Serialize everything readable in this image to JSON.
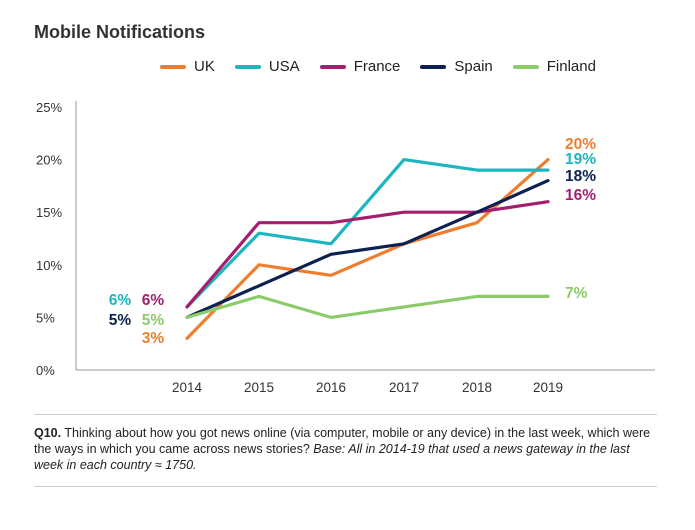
{
  "chart_data": {
    "type": "line",
    "title": "Mobile Notifications",
    "x": [
      "2014",
      "2015",
      "2016",
      "2017",
      "2018",
      "2019"
    ],
    "ylim": [
      0,
      25
    ],
    "yticks": [
      "0%",
      "5%",
      "10%",
      "15%",
      "20%",
      "25%"
    ],
    "ytick_values": [
      0,
      5,
      10,
      15,
      20,
      25
    ],
    "grid": false,
    "legend_position": "top-right",
    "series": [
      {
        "name": "UK",
        "color": "#F07D2E",
        "values": [
          3,
          10,
          9,
          12,
          14,
          20
        ],
        "start_label": "3%",
        "end_label": "20%"
      },
      {
        "name": "USA",
        "color": "#1DB5C0",
        "values": [
          6,
          13,
          12,
          20,
          19,
          19
        ],
        "start_label": "6%",
        "end_label": "19%"
      },
      {
        "name": "France",
        "color": "#A41F6E",
        "values": [
          6,
          14,
          14,
          15,
          15,
          16
        ],
        "start_label": "6%",
        "end_label": "16%"
      },
      {
        "name": "Spain",
        "color": "#0D2151",
        "values": [
          5,
          8,
          11,
          12,
          15,
          18
        ],
        "start_label": "5%",
        "end_label": "18%"
      },
      {
        "name": "Finland",
        "color": "#8CCB6A",
        "values": [
          5,
          7,
          5,
          6,
          7,
          7
        ],
        "start_label": "5%",
        "end_label": "7%"
      }
    ]
  },
  "footnote": {
    "q": "Q10.",
    "text": " Thinking about how you got news online (via computer, mobile or any device) in the last week, which were the ways in which you came across news stories? ",
    "base": "Base: All in 2014-19 that used a news gateway in the last week in each country ≈ 1750."
  }
}
